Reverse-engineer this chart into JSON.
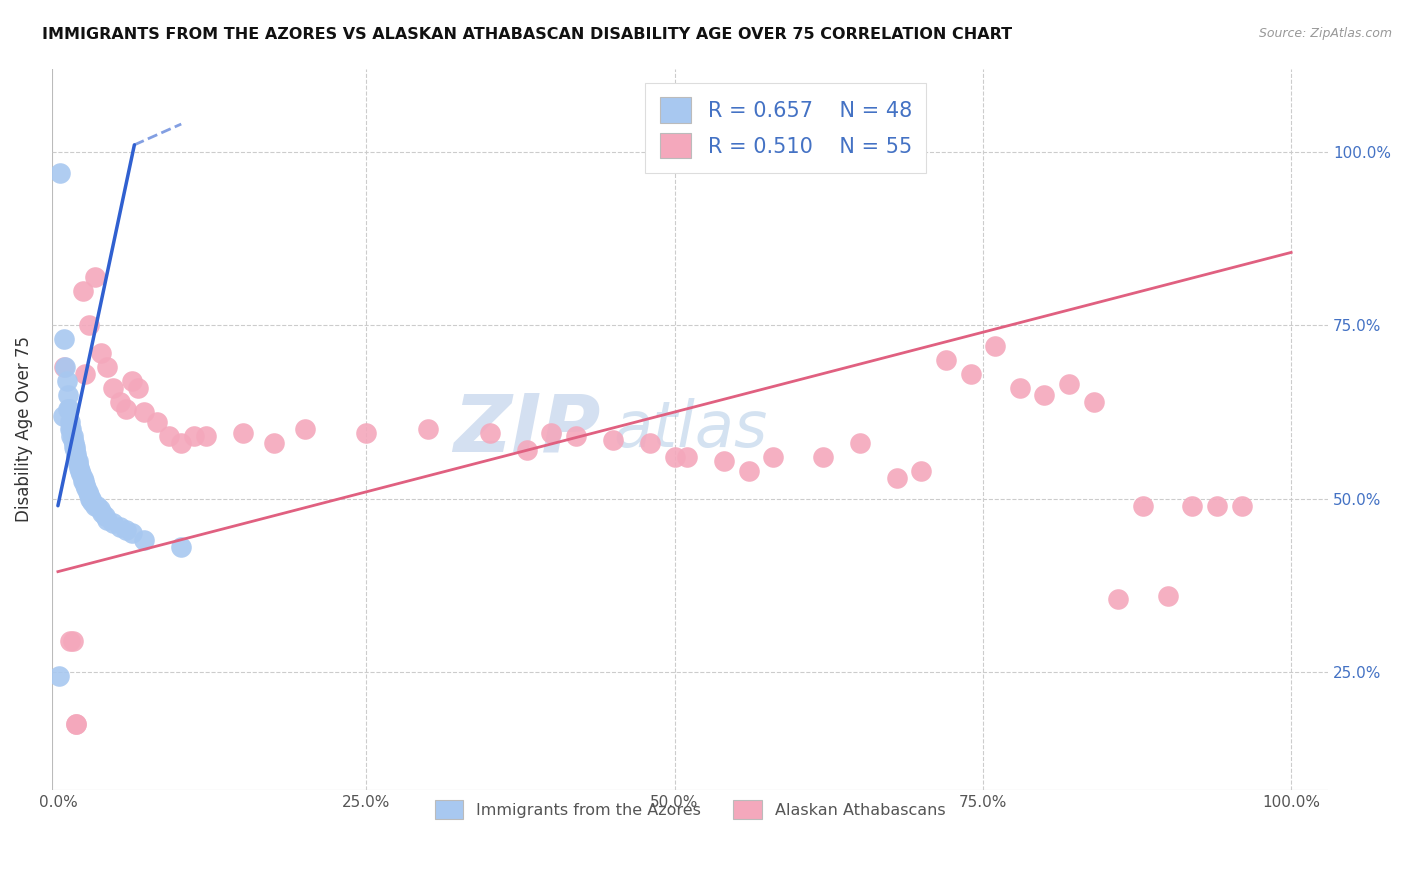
{
  "title": "IMMIGRANTS FROM THE AZORES VS ALASKAN ATHABASCAN DISABILITY AGE OVER 75 CORRELATION CHART",
  "source": "Source: ZipAtlas.com",
  "ylabel": "Disability Age Over 75",
  "legend_label_blue": "Immigrants from the Azores",
  "legend_label_pink": "Alaskan Athabascans",
  "R_blue": 0.657,
  "N_blue": 48,
  "R_pink": 0.51,
  "N_pink": 55,
  "blue_color": "#A8C8F0",
  "pink_color": "#F4A8BC",
  "blue_line_color": "#3060D0",
  "pink_line_color": "#E06080",
  "watermark_zip": "ZIP",
  "watermark_atlas": "atlas",
  "blue_scatter_x": [
    0.002,
    0.004,
    0.005,
    0.006,
    0.007,
    0.008,
    0.008,
    0.009,
    0.01,
    0.01,
    0.011,
    0.011,
    0.012,
    0.012,
    0.013,
    0.013,
    0.014,
    0.014,
    0.015,
    0.015,
    0.016,
    0.016,
    0.017,
    0.018,
    0.019,
    0.02,
    0.02,
    0.021,
    0.022,
    0.023,
    0.024,
    0.025,
    0.026,
    0.027,
    0.028,
    0.03,
    0.032,
    0.034,
    0.036,
    0.038,
    0.04,
    0.045,
    0.05,
    0.055,
    0.06,
    0.07,
    0.1,
    0.001
  ],
  "blue_scatter_y": [
    0.97,
    0.62,
    0.73,
    0.69,
    0.67,
    0.65,
    0.63,
    0.63,
    0.61,
    0.6,
    0.6,
    0.59,
    0.59,
    0.585,
    0.58,
    0.575,
    0.575,
    0.57,
    0.565,
    0.56,
    0.555,
    0.55,
    0.545,
    0.54,
    0.535,
    0.53,
    0.525,
    0.525,
    0.52,
    0.515,
    0.51,
    0.505,
    0.5,
    0.5,
    0.495,
    0.49,
    0.49,
    0.485,
    0.48,
    0.475,
    0.47,
    0.465,
    0.46,
    0.455,
    0.45,
    0.44,
    0.43,
    0.245
  ],
  "pink_scatter_x": [
    0.005,
    0.01,
    0.012,
    0.015,
    0.015,
    0.02,
    0.022,
    0.025,
    0.03,
    0.035,
    0.04,
    0.045,
    0.05,
    0.055,
    0.06,
    0.065,
    0.07,
    0.08,
    0.09,
    0.1,
    0.11,
    0.12,
    0.15,
    0.175,
    0.2,
    0.25,
    0.3,
    0.35,
    0.38,
    0.4,
    0.42,
    0.45,
    0.48,
    0.5,
    0.51,
    0.54,
    0.56,
    0.58,
    0.62,
    0.65,
    0.68,
    0.7,
    0.72,
    0.74,
    0.76,
    0.78,
    0.8,
    0.82,
    0.84,
    0.86,
    0.88,
    0.9,
    0.92,
    0.94,
    0.96
  ],
  "pink_scatter_y": [
    0.69,
    0.295,
    0.295,
    0.175,
    0.175,
    0.8,
    0.68,
    0.75,
    0.82,
    0.71,
    0.69,
    0.66,
    0.64,
    0.63,
    0.67,
    0.66,
    0.625,
    0.61,
    0.59,
    0.58,
    0.59,
    0.59,
    0.595,
    0.58,
    0.6,
    0.595,
    0.6,
    0.595,
    0.57,
    0.595,
    0.59,
    0.585,
    0.58,
    0.56,
    0.56,
    0.555,
    0.54,
    0.56,
    0.56,
    0.58,
    0.53,
    0.54,
    0.7,
    0.68,
    0.72,
    0.66,
    0.65,
    0.665,
    0.64,
    0.355,
    0.49,
    0.36,
    0.49,
    0.49,
    0.49
  ],
  "blue_line_x0": 0.0,
  "blue_line_y0": 0.49,
  "blue_line_x1": 0.062,
  "blue_line_y1": 1.01,
  "blue_line_dash_x0": 0.062,
  "blue_line_dash_y0": 1.01,
  "blue_line_dash_x1": 0.1,
  "blue_line_dash_y1": 1.04,
  "pink_line_x0": 0.0,
  "pink_line_y0": 0.395,
  "pink_line_x1": 1.0,
  "pink_line_y1": 0.855,
  "xlim": [
    -0.005,
    1.03
  ],
  "ylim": [
    0.08,
    1.12
  ],
  "x_ticks": [
    0.0,
    0.25,
    0.5,
    0.75,
    1.0
  ],
  "x_tick_labels": [
    "0.0%",
    "25.0%",
    "50.0%",
    "75.0%",
    "100.0%"
  ],
  "y_ticks_right": [
    0.25,
    0.5,
    0.75,
    1.0
  ],
  "y_tick_labels_right": [
    "25.0%",
    "50.0%",
    "75.0%",
    "100.0%"
  ]
}
